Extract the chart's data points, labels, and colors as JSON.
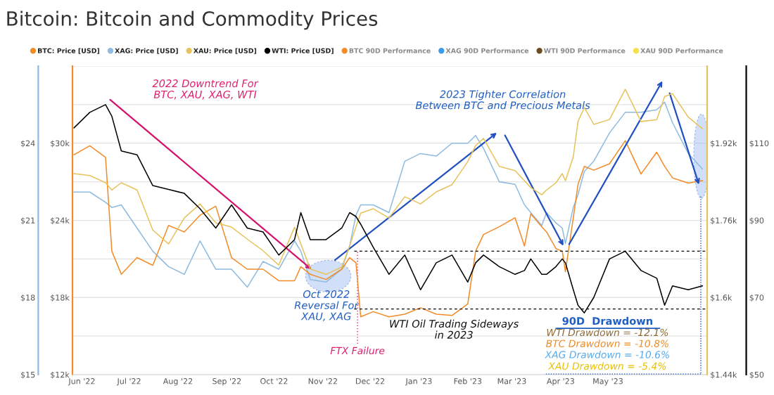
{
  "chart_data": [
    {
      "type": "line",
      "title": "Bitcoin: Bitcoin and Commodity Prices",
      "x": [
        "2022-05-27",
        "2022-06-06",
        "2022-06-16",
        "2022-06-20",
        "2022-06-26",
        "2022-07-06",
        "2022-07-16",
        "2022-07-26",
        "2022-08-05",
        "2022-08-15",
        "2022-08-25",
        "2022-09-04",
        "2022-09-14",
        "2022-09-24",
        "2022-10-04",
        "2022-10-14",
        "2022-10-18",
        "2022-10-24",
        "2022-11-03",
        "2022-11-13",
        "2022-11-18",
        "2022-11-22",
        "2022-11-25",
        "2022-12-03",
        "2022-12-13",
        "2022-12-23",
        "2023-01-02",
        "2023-01-12",
        "2023-01-22",
        "2023-02-01",
        "2023-02-06",
        "2023-02-11",
        "2023-02-21",
        "2023-03-03",
        "2023-03-09",
        "2023-03-13",
        "2023-03-20",
        "2023-03-23",
        "2023-03-29",
        "2023-04-02",
        "2023-04-04",
        "2023-04-09",
        "2023-04-12",
        "2023-04-16",
        "2023-04-22",
        "2023-05-02",
        "2023-05-12",
        "2023-05-22",
        "2023-06-01",
        "2023-06-06",
        "2023-06-11",
        "2023-06-21",
        "2023-06-30"
      ],
      "series": [
        {
          "name": "BTC: Price [USD]",
          "color": "#f28c28",
          "axis": "y2",
          "values": [
            29100,
            29800,
            28900,
            21600,
            19800,
            21100,
            20500,
            23600,
            23100,
            24400,
            25100,
            21100,
            20200,
            20200,
            19300,
            19300,
            20400,
            19800,
            19400,
            20200,
            21100,
            20700,
            16500,
            16900,
            16500,
            16700,
            17200,
            16700,
            16600,
            17500,
            21600,
            22900,
            23500,
            24200,
            22000,
            24500,
            23500,
            23100,
            21800,
            21600,
            20000,
            24200,
            26800,
            28200,
            27900,
            28400,
            30200,
            27600,
            29300,
            28200,
            27300,
            26900,
            27100
          ]
        },
        {
          "name": "XAG: Price [USD]",
          "color": "#8fbbe0",
          "values": [
            22.1,
            22.1,
            21.7,
            21.5,
            21.6,
            20.7,
            19.8,
            19.2,
            18.9,
            20.2,
            19.1,
            19.1,
            18.4,
            19.4,
            19.1,
            20.2,
            19.8,
            18.7,
            18.6,
            19.1,
            20.0,
            21.2,
            21.6,
            21.6,
            21.3,
            23.3,
            23.6,
            23.5,
            24.0,
            24.0,
            24.3,
            23.8,
            22.5,
            22.4,
            21.6,
            21.3,
            20.8,
            21.3,
            20.9,
            20.7,
            20.1,
            21.5,
            22.0,
            22.9,
            23.3,
            24.4,
            25.2,
            25.2,
            25.3,
            25.6,
            24.8,
            23.6,
            23.0
          ]
        }
      ],
      "xlim": [
        "2022-05-26",
        "2023-07-03"
      ],
      "xticks": [
        {
          "value": "2022-06-01",
          "label": "Jun '22"
        },
        {
          "value": "2022-07-01",
          "label": "Jul '22"
        },
        {
          "value": "2022-08-01",
          "label": "Aug '22"
        },
        {
          "value": "2022-09-01",
          "label": "Sep '22"
        },
        {
          "value": "2022-10-01",
          "label": "Oct '22"
        },
        {
          "value": "2022-11-01",
          "label": "Nov '22"
        },
        {
          "value": "2022-12-01",
          "label": "Dec '22"
        },
        {
          "value": "2023-01-01",
          "label": "Jan '23"
        },
        {
          "value": "2023-02-01",
          "label": "Feb '23"
        },
        {
          "value": "2023-03-01",
          "label": "Mar '23"
        },
        {
          "value": "2023-04-01",
          "label": "Apr '23"
        },
        {
          "value": "2023-05-01",
          "label": "May '23"
        }
      ],
      "ylim": [
        15,
        27
      ],
      "yticks": [
        {
          "value": 15,
          "label": "$15"
        },
        {
          "value": 16.5,
          "label": null
        },
        {
          "value": 18,
          "label": "$18"
        },
        {
          "value": 19.5,
          "label": null
        },
        {
          "value": 21,
          "label": "$21"
        },
        {
          "value": 22.5,
          "label": null
        },
        {
          "value": 24,
          "label": "$24"
        },
        {
          "value": 25.5,
          "label": null
        },
        {
          "value": 27,
          "label": null
        }
      ],
      "y2lim": [
        12000,
        36000
      ],
      "y2ticks": [
        {
          "value": 12000,
          "label": "$12k"
        },
        {
          "value": 18000,
          "label": "$18k"
        },
        {
          "value": 24000,
          "label": "$24k"
        },
        {
          "value": 30000,
          "label": "$30k"
        }
      ],
      "ref_lines": [
        {
          "axis": "x",
          "value": "2022-11-23",
          "label": "FTX Failure",
          "color": "#e0206e",
          "line_style": "dotted"
        }
      ],
      "annotations": [
        "2022 Downtrend For\nBTC, XAU, XAG, WTI",
        "2023 Tighter Correlation\nBetween BTC and Precious Metals",
        "Oct 2022\nReversal For\nXAU, XAG",
        "WTI Oil Trading Sideways\nin 2023",
        "90D  Drawdown",
        "WTI Drawdown = -12.1%",
        "BTC Drawdown = -10.8%",
        "XAG Drawdown = -10.6%",
        "XAU Drawdown = -5.4%"
      ],
      "grid": "y",
      "legend": "top"
    },
    {
      "type": "line",
      "x": [
        "2022-05-27",
        "2022-06-06",
        "2022-06-16",
        "2022-06-20",
        "2022-06-26",
        "2022-07-06",
        "2022-07-16",
        "2022-07-26",
        "2022-08-05",
        "2022-08-15",
        "2022-08-25",
        "2022-09-04",
        "2022-09-14",
        "2022-09-24",
        "2022-10-04",
        "2022-10-14",
        "2022-10-18",
        "2022-10-24",
        "2022-11-03",
        "2022-11-13",
        "2022-11-18",
        "2022-11-22",
        "2022-11-25",
        "2022-12-03",
        "2022-12-13",
        "2022-12-23",
        "2023-01-02",
        "2023-01-12",
        "2023-01-22",
        "2023-02-01",
        "2023-02-06",
        "2023-02-11",
        "2023-02-21",
        "2023-03-03",
        "2023-03-09",
        "2023-03-13",
        "2023-03-20",
        "2023-03-23",
        "2023-03-29",
        "2023-04-02",
        "2023-04-04",
        "2023-04-09",
        "2023-04-12",
        "2023-04-16",
        "2023-04-22",
        "2023-05-02",
        "2023-05-12",
        "2023-05-22",
        "2023-06-01",
        "2023-06-06",
        "2023-06-11",
        "2023-06-21",
        "2023-06-30"
      ],
      "series": [
        {
          "name": "XAU: Price [USD]",
          "color": "#e6c35c",
          "values": [
            1857,
            1853,
            1838,
            1823,
            1838,
            1823,
            1740,
            1711,
            1765,
            1794,
            1755,
            1746,
            1721,
            1697,
            1667,
            1746,
            1711,
            1659,
            1648,
            1663,
            1707,
            1746,
            1775,
            1784,
            1765,
            1809,
            1794,
            1819,
            1834,
            1882,
            1915,
            1930,
            1872,
            1863,
            1842,
            1828,
            1813,
            1823,
            1838,
            1857,
            1842,
            1892,
            1965,
            1994,
            1959,
            1969,
            2032,
            1965,
            1969,
            2017,
            2023,
            1974,
            1950
          ]
        },
        {
          "name": "WTI: Price [USD]",
          "color": "#000000",
          "axis": "y2",
          "values": [
            114,
            118,
            120,
            117,
            108,
            107,
            99,
            98,
            97,
            93,
            88,
            94,
            88,
            87,
            81,
            85,
            92,
            85,
            85,
            88,
            92,
            91,
            89,
            83,
            76,
            81,
            72,
            79,
            81,
            74,
            79,
            81,
            78,
            76,
            77,
            80,
            76,
            76,
            78,
            80,
            79,
            72,
            68,
            66,
            70,
            80,
            82,
            77,
            75,
            68,
            73,
            72,
            73
          ]
        }
      ],
      "annotations": [
        "BTC 90D Performance",
        "XAG 90D Performance",
        "WTI 90D Performance",
        "XAU 90D Performance"
      ],
      "xlim": [
        "2022-05-26",
        "2023-07-03"
      ],
      "ylim": [
        1440,
        2080
      ],
      "yticks": [
        {
          "value": 1440,
          "label": "$1.44k"
        },
        {
          "value": 1600,
          "label": "$1.6k"
        },
        {
          "value": 1760,
          "label": "$1.76k"
        },
        {
          "value": 1920,
          "label": "$1.92k"
        }
      ],
      "y2lim": [
        50,
        130
      ],
      "y2ticks": [
        {
          "value": 50,
          "label": "$50"
        },
        {
          "value": 70,
          "label": "$70"
        },
        {
          "value": 90,
          "label": "$90"
        },
        {
          "value": 110,
          "label": "$110"
        }
      ],
      "ref_lines": [
        {
          "axis": "y2",
          "value": 82,
          "color": "#000000",
          "line_style": "dashed"
        },
        {
          "axis": "y2",
          "value": 67,
          "color": "#000000",
          "line_style": "dashed"
        }
      ],
      "tick_labels": "y",
      "legend": "top"
    }
  ]
}
